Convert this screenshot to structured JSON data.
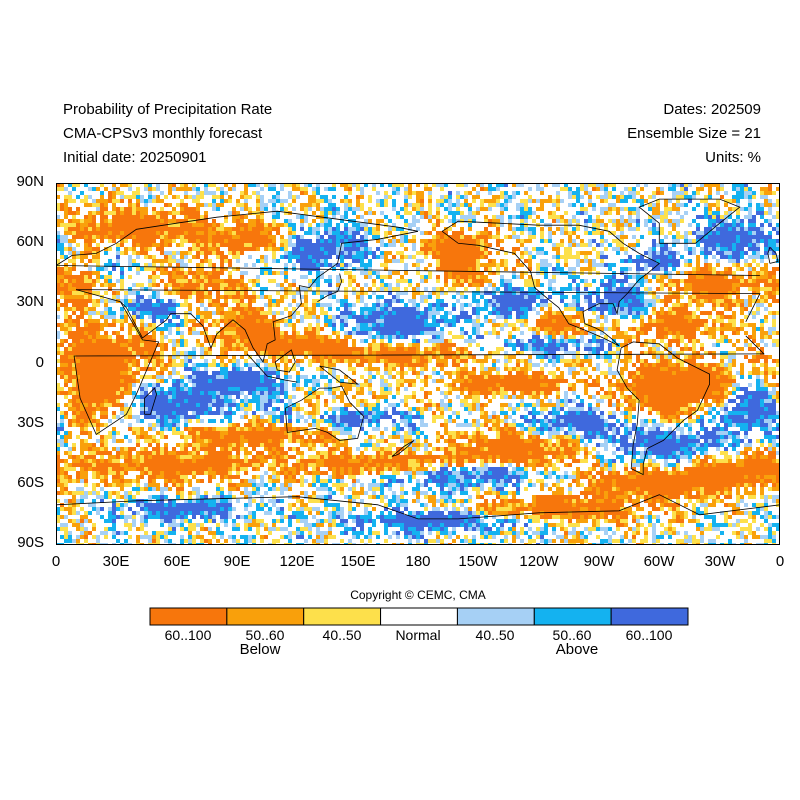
{
  "header": {
    "left": [
      "Probability of Precipitation Rate",
      "CMA-CPSv3 monthly forecast",
      "Initial date: 20250901"
    ],
    "right": [
      "Dates: 202509",
      "Ensemble Size = 21",
      "Units: %"
    ]
  },
  "map": {
    "y_labels": [
      "90N",
      "60N",
      "30N",
      "0",
      "30S",
      "60S",
      "90S"
    ],
    "x_labels": [
      "0",
      "30E",
      "60E",
      "90E",
      "120E",
      "150E",
      "180",
      "150W",
      "120W",
      "90W",
      "60W",
      "30W",
      "0"
    ],
    "lat_range": [
      -90,
      90
    ],
    "lon_range": [
      0,
      360
    ],
    "frame_color": "#000000",
    "coastline_color": "#000000"
  },
  "copyright": "Copyright © CEMC, CMA",
  "legend": {
    "items": [
      {
        "label": "60..100",
        "color": "#f7760c"
      },
      {
        "label": "50..60",
        "color": "#f9a00b"
      },
      {
        "label": "40..50",
        "color": "#fde04b"
      },
      {
        "label": "Normal",
        "color": "#ffffff"
      },
      {
        "label": "40..50",
        "color": "#a6d0f5"
      },
      {
        "label": "50..60",
        "color": "#14b2f0"
      },
      {
        "label": "60..100",
        "color": "#3f69dd"
      }
    ],
    "groups": [
      "Below",
      "Above"
    ]
  },
  "colors": {
    "below_strong": "#f7760c",
    "below_mid": "#f9a00b",
    "below_weak": "#fde04b",
    "normal": "#ffffff",
    "above_weak": "#a6d0f5",
    "above_mid": "#14b2f0",
    "above_strong": "#3f69dd"
  }
}
